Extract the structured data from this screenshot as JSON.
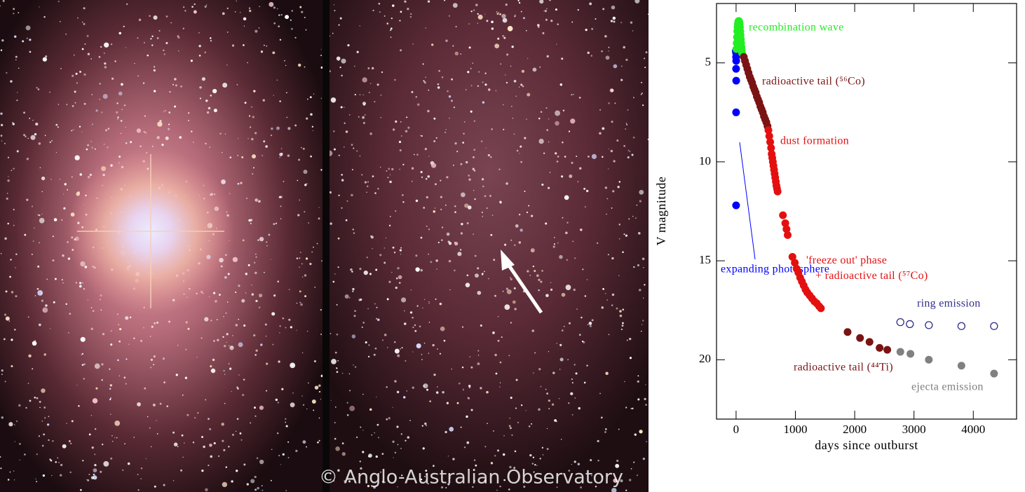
{
  "image": {
    "credit": "© Anglo-Australian Observatory"
  },
  "chart_data": {
    "type": "scatter",
    "xlabel": "days since outburst",
    "ylabel": "V magnitude",
    "xlim": [
      -330,
      4730
    ],
    "ylim": [
      2,
      23
    ],
    "y_inverted": true,
    "xticks": [
      0,
      1000,
      2000,
      3000,
      4000
    ],
    "yticks": [
      5,
      10,
      15,
      20
    ],
    "series": [
      {
        "name": "expanding photosphere",
        "color": "#0000ff",
        "marker": "filled",
        "x": [
          -5,
          0,
          0,
          2,
          0,
          2,
          0,
          0
        ],
        "values": [
          4.4,
          4.5,
          4.7,
          4.9,
          5.3,
          5.9,
          7.5,
          12.2
        ]
      },
      {
        "name": "recombination wave",
        "color": "#22ee22",
        "marker": "filled",
        "x": [
          5,
          10,
          15,
          20,
          25,
          30,
          35,
          40,
          45,
          50,
          55,
          60,
          65,
          70,
          75,
          80,
          85,
          90,
          95,
          100
        ],
        "values": [
          4.3,
          4.0,
          3.7,
          3.4,
          3.2,
          3.05,
          2.95,
          2.9,
          2.88,
          2.9,
          2.95,
          3.05,
          3.2,
          3.4,
          3.6,
          3.8,
          4.0,
          4.2,
          4.35,
          4.5
        ]
      },
      {
        "name": "radioactive tail (⁵⁶Co)",
        "color": "#7a1414",
        "marker": "filled",
        "x": [
          130,
          150,
          170,
          190,
          210,
          230,
          250,
          270,
          290,
          310,
          330,
          350,
          370,
          390,
          410,
          430,
          450,
          470,
          490,
          510,
          530
        ],
        "values": [
          4.7,
          4.9,
          5.1,
          5.3,
          5.5,
          5.7,
          5.85,
          6.0,
          6.2,
          6.35,
          6.5,
          6.7,
          6.85,
          7.0,
          7.2,
          7.35,
          7.5,
          7.7,
          7.85,
          8.0,
          8.2
        ]
      },
      {
        "name": "dust formation",
        "color": "#e41010",
        "marker": "filled",
        "x": [
          545,
          560,
          575,
          590,
          600,
          610,
          620,
          630,
          640,
          650,
          660,
          670,
          680,
          690,
          700
        ],
        "values": [
          8.4,
          8.7,
          9.0,
          9.3,
          9.6,
          9.8,
          10.0,
          10.2,
          10.4,
          10.6,
          10.8,
          11.0,
          11.2,
          11.35,
          11.5
        ]
      },
      {
        "name": "'freeze out' phase\n+ radioactive tail (⁵⁷Co)",
        "color": "#e41010",
        "marker": "filled",
        "x": [
          790,
          830,
          850,
          870,
          950,
          990,
          1020,
          1050,
          1080,
          1110,
          1140,
          1170,
          1200,
          1240,
          1280,
          1320,
          1360,
          1400,
          1430
        ],
        "values": [
          12.7,
          13.1,
          13.4,
          13.7,
          14.8,
          15.1,
          15.4,
          15.6,
          15.85,
          16.05,
          16.25,
          16.45,
          16.6,
          16.75,
          16.9,
          17.05,
          17.15,
          17.3,
          17.4
        ]
      },
      {
        "name": "radioactive tail (⁴⁴Ti)",
        "color": "#7a1414",
        "marker": "filled",
        "x": [
          1880,
          2090,
          2250,
          2420,
          2550
        ],
        "values": [
          18.6,
          18.9,
          19.1,
          19.4,
          19.5
        ]
      },
      {
        "name": "ring emission",
        "color": "#2e2e88",
        "marker": "open",
        "x": [
          2770,
          2930,
          3250,
          3800,
          4350
        ],
        "values": [
          18.1,
          18.2,
          18.25,
          18.3,
          18.3
        ]
      },
      {
        "name": "ejecta emission",
        "color": "#808080",
        "marker": "filled",
        "x": [
          2770,
          2940,
          3250,
          3800,
          4350
        ],
        "values": [
          19.6,
          19.7,
          20.0,
          20.3,
          20.7
        ]
      }
    ]
  }
}
